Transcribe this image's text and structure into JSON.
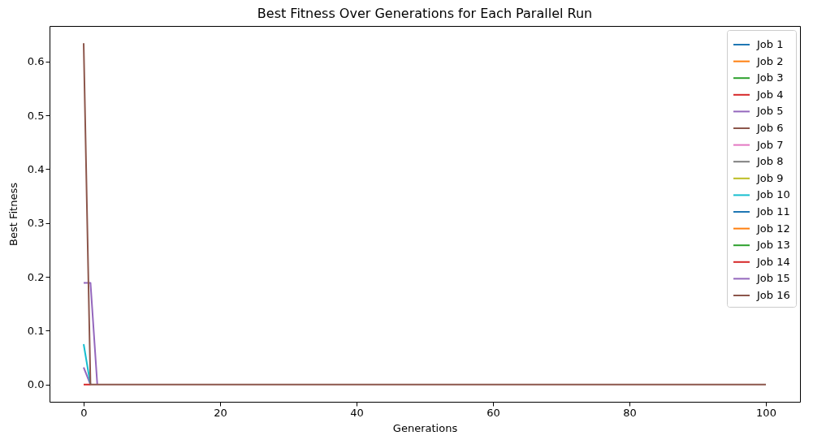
{
  "chart_data": {
    "type": "line",
    "title": "Best Fitness Over Generations for Each Parallel Run",
    "xlabel": "Generations",
    "ylabel": "Best Fitness",
    "xlim": [
      -5,
      105
    ],
    "xticks": [
      0,
      20,
      40,
      60,
      80,
      100
    ],
    "ylim": [
      -0.032,
      0.666
    ],
    "yticks": [
      {
        "value": 0,
        "label": "0.0"
      },
      {
        "value": 0.1,
        "label": "0.1"
      },
      {
        "value": 0.2,
        "label": "0.2"
      },
      {
        "value": 0.3,
        "label": "0.3"
      },
      {
        "value": 0.4,
        "label": "0.4"
      },
      {
        "value": 0.5,
        "label": "0.5"
      },
      {
        "value": 0.6,
        "label": "0.6"
      }
    ],
    "grid": false,
    "legend": "top right",
    "line_style": "solid",
    "series": [
      {
        "name": "Job 1",
        "color": "#1f77b4"
      },
      {
        "name": "Job 2",
        "color": "#ff7f0e"
      },
      {
        "name": "Job 3",
        "color": "#2ca02c"
      },
      {
        "name": "Job 4",
        "color": "#d62728"
      },
      {
        "name": "Job 5",
        "color": "#9467bd",
        "x": [
          0,
          1
        ],
        "values": [
          0.032,
          0
        ]
      },
      {
        "name": "Job 6",
        "color": "#8c564b"
      },
      {
        "name": "Job 7",
        "color": "#e377c2"
      },
      {
        "name": "Job 8",
        "color": "#7f7f7f"
      },
      {
        "name": "Job 9",
        "color": "#bcbd22"
      },
      {
        "name": "Job 10",
        "color": "#17becf",
        "x": [
          0,
          1
        ],
        "values": [
          0.075,
          0
        ]
      },
      {
        "name": "Job 11",
        "color": "#1f77b4"
      },
      {
        "name": "Job 12",
        "color": "#ff7f0e"
      },
      {
        "name": "Job 13",
        "color": "#2ca02c"
      },
      {
        "name": "Job 14",
        "color": "#d62728",
        "x": [
          0,
          1
        ],
        "values": [
          0,
          0
        ]
      },
      {
        "name": "Job 15",
        "color": "#9467bd",
        "x": [
          0,
          1,
          2
        ],
        "values": [
          0.189,
          0.189,
          0
        ]
      },
      {
        "name": "Job 16",
        "color": "#8c564b",
        "x": [
          0,
          1,
          100
        ],
        "values": [
          0.634,
          0,
          0
        ]
      }
    ]
  }
}
